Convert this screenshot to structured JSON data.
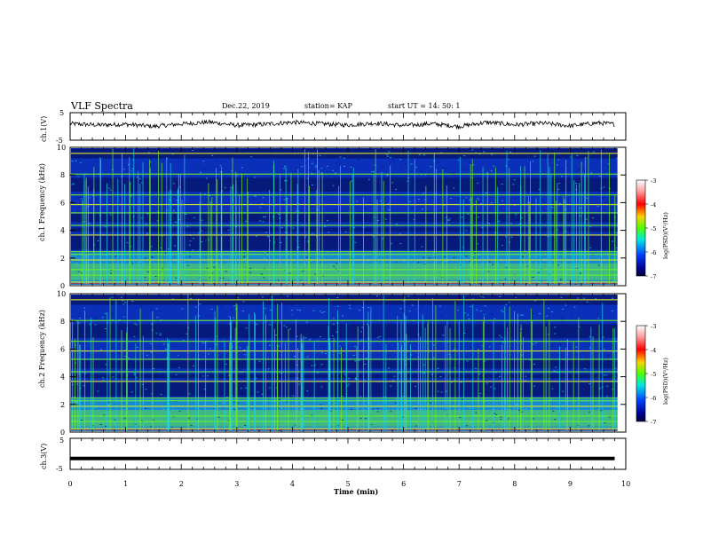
{
  "header": {
    "title": "VLF Spectra",
    "date": "Dec.22, 2019",
    "station": "station= KAP",
    "start": "start  UT =   14: 50: 1"
  },
  "chart_data": [
    {
      "type": "line",
      "panel": "ch1-waveform",
      "ylabel": "ch.1(V)",
      "ylim": [
        -5,
        5
      ],
      "ytick_labels": [
        "5",
        "-5"
      ],
      "note": "noisy waveform fluctuating roughly between -1 and 2 V over 0–9.8 min",
      "x": [
        0,
        0.5,
        1,
        1.5,
        2,
        2.5,
        3,
        3.5,
        4,
        4.5,
        5,
        5.5,
        6,
        6.5,
        7,
        7.5,
        8,
        8.5,
        9,
        9.5,
        9.8
      ],
      "y": [
        1.0,
        0.5,
        0.8,
        0.0,
        0.9,
        1.6,
        0.4,
        0.8,
        1.5,
        1.0,
        0.5,
        1.2,
        0.3,
        1.0,
        0.0,
        1.5,
        0.6,
        1.2,
        0.2,
        1.3,
        0.8
      ]
    },
    {
      "type": "heatmap",
      "panel": "ch1-spectrogram",
      "ylabel": "ch.1 Frequency (kHz)",
      "ylim": [
        0,
        10
      ],
      "ytick_labels": [
        "0",
        "2",
        "4",
        "6",
        "8",
        "10"
      ],
      "colorbar": {
        "label": "log(PSD)(V²/Hz)",
        "range": [
          -7,
          -3
        ],
        "tick_labels": [
          "-3",
          "-4",
          "-5",
          "-6",
          "-7"
        ]
      }
    },
    {
      "type": "heatmap",
      "panel": "ch2-spectrogram",
      "ylabel": "ch.2 Frequency (kHz)",
      "ylim": [
        0,
        10
      ],
      "ytick_labels": [
        "0",
        "2",
        "4",
        "6",
        "8",
        "10"
      ],
      "colorbar": {
        "label": "log(PSD)(V²/Hz)",
        "range": [
          -7,
          -3
        ],
        "tick_labels": [
          "-3",
          "-4",
          "-5",
          "-6",
          "-7"
        ]
      }
    },
    {
      "type": "line",
      "panel": "ch3-waveform",
      "ylabel": "ch.3(V)",
      "ylim": [
        -5,
        5
      ],
      "ytick_labels": [
        "5",
        "-5"
      ],
      "x": [
        0,
        9.8
      ],
      "y": [
        -1.5,
        -1.5
      ]
    }
  ],
  "xaxis": {
    "label": "Time (min)",
    "range": [
      0,
      10
    ],
    "tick_labels": [
      "0",
      "1",
      "2",
      "3",
      "4",
      "5",
      "6",
      "7",
      "8",
      "9",
      "10"
    ]
  },
  "colors": {
    "spec_background": "#0a2fb8",
    "spec_dark": "#061670",
    "spec_cyan": "#1fd3e6",
    "spec_green": "#6ef02a",
    "spec_yellow": "#e8f020",
    "spec_red": "#e01818"
  }
}
